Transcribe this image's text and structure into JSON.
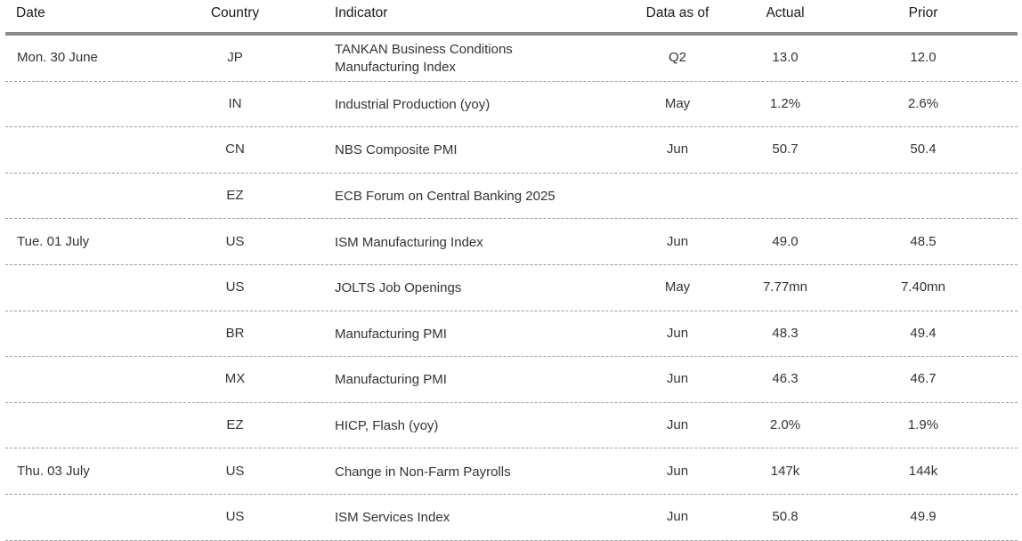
{
  "columns": {
    "date": "Date",
    "country": "Country",
    "indicator": "Indicator",
    "data_as_of": "Data as of",
    "actual": "Actual",
    "prior": "Prior"
  },
  "rows": [
    {
      "date": "Mon. 30 June",
      "country": "JP",
      "indicator_line1": "TANKAN Business Conditions",
      "indicator_line2": "Manufacturing Index",
      "data_as_of": "Q2",
      "actual": "13.0",
      "prior": "12.0"
    },
    {
      "date": "",
      "country": "IN",
      "indicator_line1": "Industrial Production (yoy)",
      "indicator_line2": "",
      "data_as_of": "May",
      "actual": "1.2%",
      "prior": "2.6%"
    },
    {
      "date": "",
      "country": "CN",
      "indicator_line1": "NBS Composite PMI",
      "indicator_line2": "",
      "data_as_of": "Jun",
      "actual": "50.7",
      "prior": "50.4"
    },
    {
      "date": "",
      "country": "EZ",
      "indicator_line1": "ECB Forum on Central Banking 2025",
      "indicator_line2": "",
      "data_as_of": "",
      "actual": "",
      "prior": ""
    },
    {
      "date": "Tue. 01 July",
      "country": "US",
      "indicator_line1": "ISM Manufacturing Index",
      "indicator_line2": "",
      "data_as_of": "Jun",
      "actual": "49.0",
      "prior": "48.5"
    },
    {
      "date": "",
      "country": "US",
      "indicator_line1": "JOLTS Job Openings",
      "indicator_line2": "",
      "data_as_of": "May",
      "actual": "7.77mn",
      "prior": "7.40mn"
    },
    {
      "date": "",
      "country": "BR",
      "indicator_line1": "Manufacturing PMI",
      "indicator_line2": "",
      "data_as_of": "Jun",
      "actual": "48.3",
      "prior": "49.4"
    },
    {
      "date": "",
      "country": "MX",
      "indicator_line1": "Manufacturing PMI",
      "indicator_line2": "",
      "data_as_of": "Jun",
      "actual": "46.3",
      "prior": "46.7"
    },
    {
      "date": "",
      "country": "EZ",
      "indicator_line1": "HICP, Flash (yoy)",
      "indicator_line2": "",
      "data_as_of": "Jun",
      "actual": "2.0%",
      "prior": "1.9%"
    },
    {
      "date": "Thu. 03 July",
      "country": "US",
      "indicator_line1": "Change in Non-Farm Payrolls",
      "indicator_line2": "",
      "data_as_of": "Jun",
      "actual": "147k",
      "prior": "144k"
    },
    {
      "date": "",
      "country": "US",
      "indicator_line1": "ISM Services Index",
      "indicator_line2": "",
      "data_as_of": "Jun",
      "actual": "50.8",
      "prior": "49.9"
    }
  ]
}
